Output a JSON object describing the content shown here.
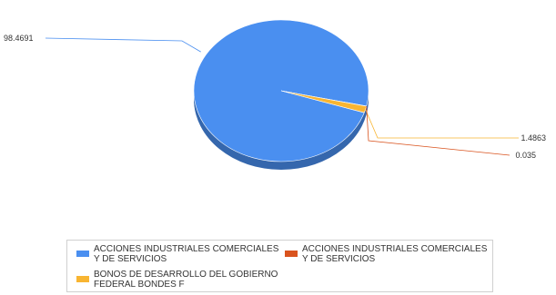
{
  "chart_data": {
    "type": "pie",
    "style": "3d",
    "title": "",
    "legend_position": "bottom",
    "slices": [
      {
        "name": "ACCIONES INDUSTRIALES COMERCIALES Y DE SERVICIOS",
        "value": 98.4691,
        "label": "98.4691",
        "color": "#4a8ff0"
      },
      {
        "name": "ACCIONES INDUSTRIALES COMERCIALES Y DE SERVICIOS",
        "value": 0.035,
        "label": "0.035",
        "color": "#d9531e"
      },
      {
        "name": "BONOS DE DESARROLLO DEL GOBIERNO FEDERAL BONDES F",
        "value": 1.4863,
        "label": "1.4863",
        "color": "#f8b532"
      }
    ]
  }
}
